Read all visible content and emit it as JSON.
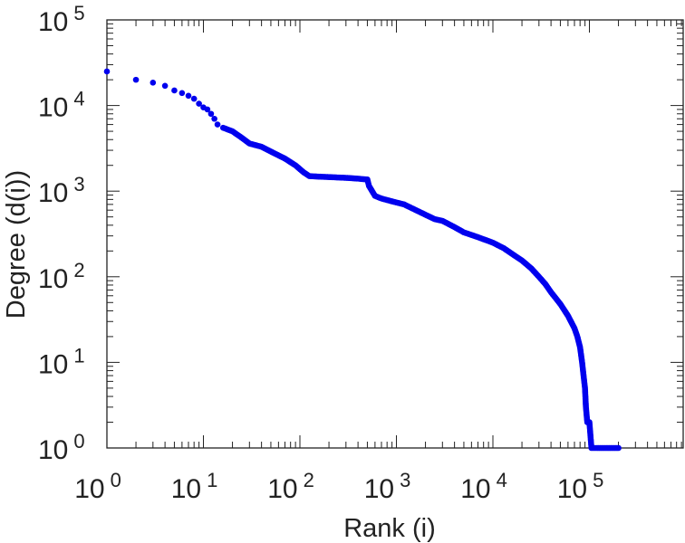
{
  "chart_data": {
    "type": "scatter",
    "title": "",
    "xlabel": "Rank (i)",
    "ylabel": "Degree (d(i))",
    "xscale": "log",
    "yscale": "log",
    "xlim": [
      1,
      1000000
    ],
    "ylim": [
      1,
      100000
    ],
    "grid": false,
    "marker_color": "#0000ee",
    "xticks": [
      {
        "base": "10",
        "exp": "0"
      },
      {
        "base": "10",
        "exp": "1"
      },
      {
        "base": "10",
        "exp": "2"
      },
      {
        "base": "10",
        "exp": "3"
      },
      {
        "base": "10",
        "exp": "4"
      },
      {
        "base": "10",
        "exp": "5"
      }
    ],
    "yticks": [
      {
        "base": "10",
        "exp": "0"
      },
      {
        "base": "10",
        "exp": "1"
      },
      {
        "base": "10",
        "exp": "2"
      },
      {
        "base": "10",
        "exp": "3"
      },
      {
        "base": "10",
        "exp": "4"
      },
      {
        "base": "10",
        "exp": "5"
      }
    ],
    "series": [
      {
        "points": [
          [
            1,
            25000
          ],
          [
            2,
            20000
          ],
          [
            3,
            18500
          ],
          [
            4,
            17000
          ],
          [
            5,
            15000
          ],
          [
            6,
            14000
          ],
          [
            7,
            13000
          ],
          [
            8,
            12000
          ],
          [
            9,
            10500
          ],
          [
            10,
            9500
          ],
          [
            11,
            9000
          ],
          [
            12,
            8000
          ],
          [
            13,
            7000
          ],
          [
            14,
            6000
          ],
          [
            16,
            5500
          ],
          [
            20,
            5000
          ],
          [
            25,
            4200
          ],
          [
            30,
            3600
          ],
          [
            40,
            3300
          ],
          [
            50,
            2900
          ],
          [
            70,
            2400
          ],
          [
            90,
            2000
          ],
          [
            110,
            1650
          ],
          [
            125,
            1500
          ],
          [
            150,
            1480
          ],
          [
            200,
            1460
          ],
          [
            300,
            1430
          ],
          [
            400,
            1400
          ],
          [
            450,
            1380
          ],
          [
            500,
            1370
          ],
          [
            520,
            1150
          ],
          [
            560,
            1000
          ],
          [
            600,
            880
          ],
          [
            700,
            820
          ],
          [
            900,
            760
          ],
          [
            1200,
            700
          ],
          [
            1500,
            620
          ],
          [
            2000,
            530
          ],
          [
            2500,
            470
          ],
          [
            3000,
            450
          ],
          [
            4000,
            380
          ],
          [
            5000,
            330
          ],
          [
            7000,
            290
          ],
          [
            10000,
            250
          ],
          [
            13000,
            215
          ],
          [
            17000,
            175
          ],
          [
            20000,
            155
          ],
          [
            25000,
            125
          ],
          [
            30000,
            100
          ],
          [
            35000,
            82
          ],
          [
            40000,
            66
          ],
          [
            50000,
            48
          ],
          [
            60000,
            35
          ],
          [
            70000,
            25
          ],
          [
            75000,
            20
          ],
          [
            80000,
            15
          ],
          [
            84000,
            10
          ],
          [
            87000,
            7
          ],
          [
            90000,
            5
          ],
          [
            92000,
            3
          ],
          [
            95000,
            2
          ],
          [
            100000,
            2
          ],
          [
            105000,
            1
          ],
          [
            120000,
            1
          ],
          [
            150000,
            1
          ],
          [
            200000,
            1
          ]
        ]
      }
    ]
  }
}
